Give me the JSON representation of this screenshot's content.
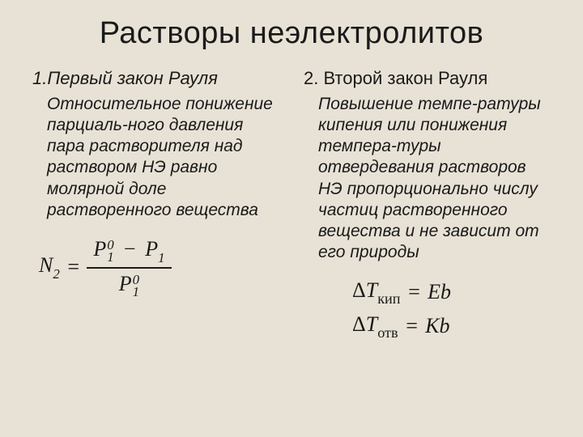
{
  "title": "Растворы неэлектролитов",
  "left": {
    "heading_num": "1.",
    "heading_text": "Первый закон Рауля",
    "body": "Относительное понижение парциаль-ного давления пара растворителя над раствором НЭ равно молярной доле растворенного вещества",
    "formula": {
      "lhs_var": "N",
      "lhs_sub": "2",
      "eq": "=",
      "num_part1_var": "P",
      "num_part1_sup": "0",
      "num_part1_sub": "1",
      "minus": "−",
      "num_part2_var": "P",
      "num_part2_sub": "1",
      "den_var": "P",
      "den_sup": "0",
      "den_sub": "1"
    }
  },
  "right": {
    "heading_num": "2.",
    "heading_text": "Второй закон Рауля",
    "body": "Повышение темпе-ратуры кипения или понижения темпера-туры отвердевания растворов НЭ пропорционально числу частиц растворенного вещества и не зависит от его природы",
    "formula1": {
      "delta": "Δ",
      "var": "T",
      "sub": "кип",
      "eq": "=",
      "rhs": "Eb"
    },
    "formula2": {
      "delta": "Δ",
      "var": "T",
      "sub": "отв",
      "eq": "=",
      "rhs": "Kb"
    }
  },
  "colors": {
    "background": "#e8e2d6",
    "text": "#1a1a1a"
  }
}
